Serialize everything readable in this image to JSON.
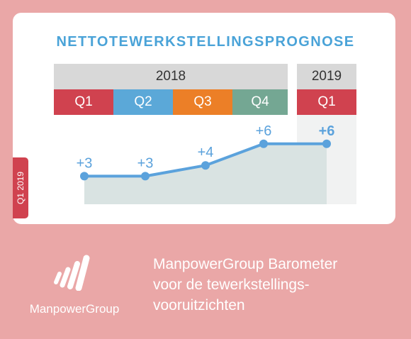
{
  "colors": {
    "background": "#eaa7a7",
    "title": "#4aa3d8",
    "line": "#5ba2dc",
    "area": "#d9e3e2",
    "q1": "#d0424f",
    "q2": "#5ba8d8",
    "q3": "#ec7f27",
    "q4": "#74a793"
  },
  "header": {
    "title": "NETTOTEWERKSTELLINGSPROGNOSE",
    "year_a": "2018",
    "year_b": "2019",
    "quarters": [
      "Q1",
      "Q2",
      "Q3",
      "Q4",
      "Q1"
    ]
  },
  "side_tab": "Q1 2019",
  "chart_data": {
    "type": "area",
    "categories": [
      "Q1 2018",
      "Q2 2018",
      "Q3 2018",
      "Q4 2018",
      "Q1 2019"
    ],
    "values": [
      3,
      3,
      4,
      6,
      6
    ],
    "labels": [
      "+3",
      "+3",
      "+4",
      "+6",
      "+6"
    ],
    "highlight_last": true,
    "ylim": [
      0,
      10
    ]
  },
  "footer": {
    "brand": "ManpowerGroup",
    "tagline": [
      "ManpowerGroup Barometer",
      "voor de tewerkstellings-",
      "vooruitzichten"
    ]
  }
}
